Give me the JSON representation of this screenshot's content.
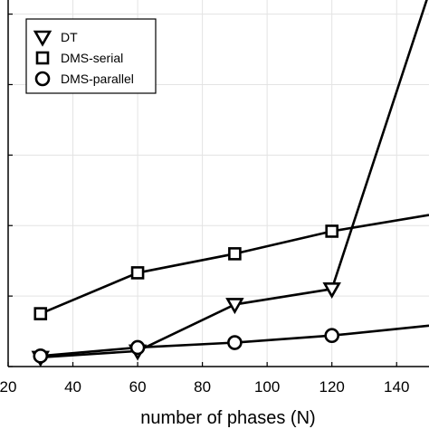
{
  "chart_data": {
    "type": "line",
    "xlabel": "number of phases (N)",
    "ylabel": "",
    "xlim": [
      20,
      150
    ],
    "ylim": [
      0,
      5.2
    ],
    "x_ticks": [
      20,
      40,
      60,
      80,
      100,
      120,
      140
    ],
    "x_tick_labels": [
      "20",
      "40",
      "60",
      "80",
      "100",
      "120",
      "140"
    ],
    "y_ticks": [
      0,
      1,
      2,
      3,
      4,
      5
    ],
    "grid": true,
    "legend_position": "top-left",
    "series": [
      {
        "name": "DT",
        "marker": "triangle-down",
        "x": [
          30,
          60,
          90,
          120,
          150
        ],
        "y": [
          0.13,
          0.22,
          0.88,
          1.1,
          5.3
        ]
      },
      {
        "name": "DMS-serial",
        "marker": "square",
        "x": [
          30,
          60,
          90,
          120,
          150
        ],
        "y": [
          0.75,
          1.33,
          1.6,
          1.92,
          2.15
        ]
      },
      {
        "name": "DMS-parallel",
        "marker": "circle",
        "x": [
          30,
          60,
          90,
          120,
          150
        ],
        "y": [
          0.15,
          0.27,
          0.34,
          0.44,
          0.58
        ]
      }
    ]
  }
}
